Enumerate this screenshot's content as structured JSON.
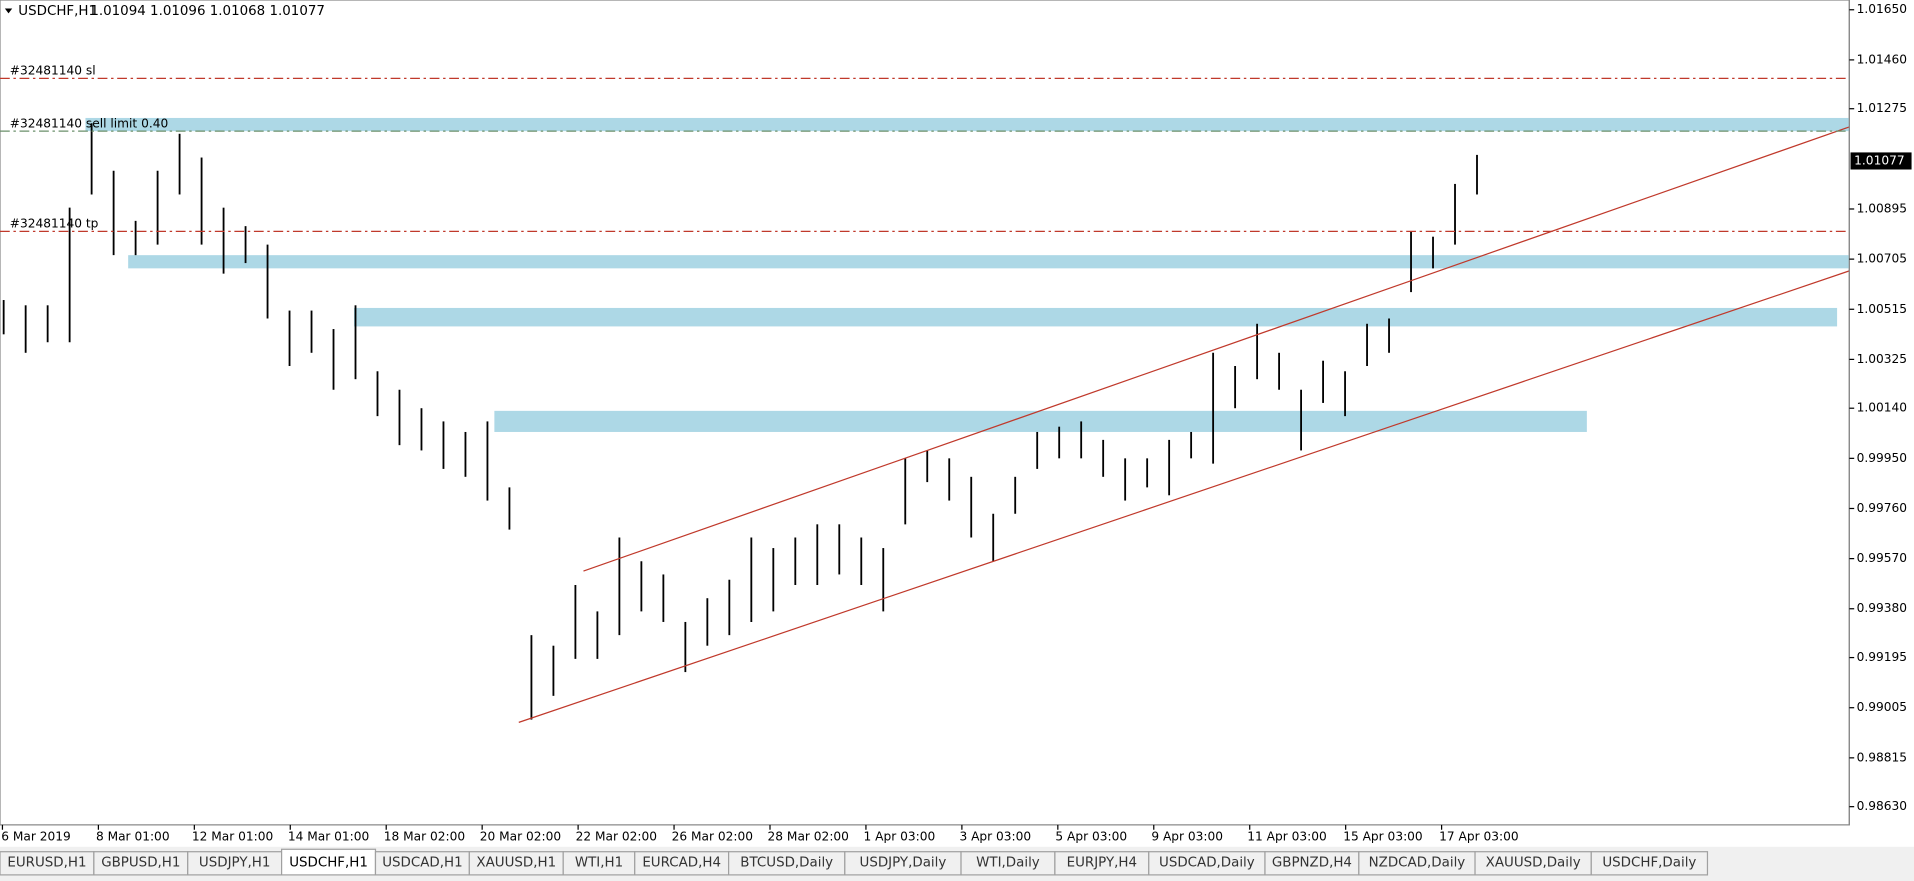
{
  "header": {
    "symbol": "USDCHF,H1",
    "quote": "1.01094 1.01096 1.01068 1.01077"
  },
  "chart_data": {
    "type": "range-bar",
    "color": "#000000",
    "highs": [
      1.0055,
      1.0053,
      1.0053,
      1.009,
      1.0122,
      1.0104,
      1.0085,
      1.0104,
      1.0118,
      1.0109,
      1.009,
      1.0083,
      1.0076,
      1.0051,
      1.0051,
      1.0044,
      1.0053,
      1.0028,
      1.0021,
      1.0014,
      1.0009,
      1.0005,
      1.0009,
      0.9984,
      0.9928,
      0.9924,
      0.9947,
      0.9937,
      0.9965,
      0.9956,
      0.9951,
      0.9933,
      0.9942,
      0.9949,
      0.9965,
      0.9961,
      0.9965,
      0.997,
      0.997,
      0.9965,
      0.9961,
      0.9995,
      0.9998,
      0.9995,
      0.9988,
      0.9974,
      0.9988,
      1.0005,
      1.0007,
      1.0009,
      1.0002,
      0.9995,
      0.9995,
      1.0002,
      1.0005,
      1.0035,
      1.003,
      1.0046,
      1.0035,
      1.0021,
      1.0032,
      1.0028,
      1.0046,
      1.0048,
      1.0081,
      1.0079,
      1.0099,
      1.011
    ],
    "lows": [
      1.0042,
      1.0035,
      1.0039,
      1.0039,
      1.0095,
      1.0072,
      1.0072,
      1.0076,
      1.0095,
      1.0076,
      1.0065,
      1.0069,
      1.0048,
      1.003,
      1.0035,
      1.0021,
      1.0025,
      1.0011,
      1.0,
      0.9998,
      0.9991,
      0.9988,
      0.9979,
      0.9968,
      0.9896,
      0.9905,
      0.9919,
      0.9919,
      0.9928,
      0.9937,
      0.9933,
      0.9914,
      0.9924,
      0.9928,
      0.9933,
      0.9937,
      0.9947,
      0.9947,
      0.9951,
      0.9947,
      0.9937,
      0.997,
      0.9986,
      0.9979,
      0.9965,
      0.9956,
      0.9974,
      0.9991,
      0.9995,
      0.9995,
      0.9988,
      0.9979,
      0.9984,
      0.9981,
      0.9995,
      0.9993,
      1.0014,
      1.0025,
      1.0021,
      0.9998,
      1.0016,
      1.0011,
      1.003,
      1.0035,
      1.0058,
      1.0067,
      1.0076,
      1.0095
    ],
    "ylim": [
      0.98561,
      1.01687
    ],
    "yticks": [
      {
        "value": 1.0165,
        "label": "1.01650"
      },
      {
        "value": 1.0146,
        "label": "1.01460"
      },
      {
        "value": 1.01275,
        "label": "1.01275"
      },
      {
        "value": 1.00895,
        "label": "1.00895"
      },
      {
        "value": 1.00705,
        "label": "1.00705"
      },
      {
        "value": 1.00515,
        "label": "1.00515"
      },
      {
        "value": 1.00325,
        "label": "1.00325"
      },
      {
        "value": 1.0014,
        "label": "1.00140"
      },
      {
        "value": 0.9995,
        "label": "0.99950"
      },
      {
        "value": 0.9976,
        "label": "0.99760"
      },
      {
        "value": 0.9957,
        "label": "0.99570"
      },
      {
        "value": 0.9938,
        "label": "0.99380"
      },
      {
        "value": 0.99195,
        "label": "0.99195"
      },
      {
        "value": 0.99005,
        "label": "0.99005"
      },
      {
        "value": 0.98815,
        "label": "0.98815"
      },
      {
        "value": 0.9863,
        "label": "0.98630"
      }
    ],
    "current_price": {
      "value": 1.01077,
      "label": "1.01077"
    },
    "categories": [
      "6 Mar 2019",
      "8 Mar 01:00",
      "12 Mar 01:00",
      "14 Mar 01:00",
      "18 Mar 02:00",
      "20 Mar 02:00",
      "22 Mar 02:00",
      "26 Mar 02:00",
      "28 Mar 02:00",
      "1 Apr 03:00",
      "3 Apr 03:00",
      "5 Apr 03:00",
      "9 Apr 03:00",
      "11 Apr 03:00",
      "15 Apr 03:00",
      "17 Apr 03:00"
    ],
    "order_lines": [
      {
        "label": "#32481140 sl",
        "value": 1.0139,
        "color": "#c0392b"
      },
      {
        "label": "#32481140 sell limit 0.40",
        "value": 1.0119,
        "color": "#6a8f6a"
      },
      {
        "label": "#32481140 tp",
        "value": 1.0081,
        "color": "#c0392b"
      }
    ],
    "zones": [
      {
        "high": 1.0124,
        "low": 1.0119
      },
      {
        "high": 1.0072,
        "low": 1.0067
      },
      {
        "high": 1.0052,
        "low": 1.0045
      },
      {
        "high": 1.0013,
        "low": 1.0005
      }
    ],
    "zone_color": "#add8e6"
  },
  "tabs": [
    "EURUSD,H1",
    "GBPUSD,H1",
    "USDJPY,H1",
    "USDCHF,H1",
    "USDCAD,H1",
    "XAUUSD,H1",
    "WTI,H1",
    "EURCAD,H4",
    "BTCUSD,Daily",
    "USDJPY,Daily",
    "WTI,Daily",
    "EURJPY,H4",
    "USDCAD,Daily",
    "GBPNZD,H4",
    "NZDCAD,Daily",
    "XAUUSD,Daily",
    "USDCHF,Daily"
  ],
  "active_tab": 3
}
